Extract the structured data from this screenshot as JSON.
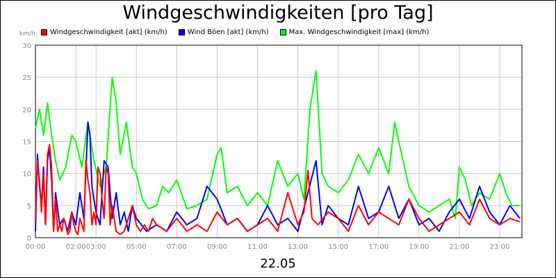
{
  "chart_data": {
    "type": "line",
    "title": "Windgeschwindigkeiten [pro Tag]",
    "ylabel": "km/h",
    "xlabel": "22.05",
    "ylim": [
      0,
      30
    ],
    "xlim": [
      0,
      24.1
    ],
    "yticks": [
      0,
      5,
      10,
      15,
      20,
      25,
      30
    ],
    "xticks": [
      {
        "h": 0,
        "label": "00:00"
      },
      {
        "h": 2,
        "label": "02:00"
      },
      {
        "h": 3,
        "label": "03:00"
      },
      {
        "h": 5,
        "label": "05:00"
      },
      {
        "h": 7,
        "label": "07:00"
      },
      {
        "h": 9,
        "label": "09:00"
      },
      {
        "h": 11,
        "label": "11:00"
      },
      {
        "h": 13,
        "label": "13:00"
      },
      {
        "h": 15,
        "label": "15:00"
      },
      {
        "h": 17,
        "label": "17:00"
      },
      {
        "h": 19,
        "label": "19:00"
      },
      {
        "h": 21,
        "label": "21:00"
      },
      {
        "h": 23,
        "label": "23:00"
      }
    ],
    "grid": true,
    "legend_position": "top",
    "series": [
      {
        "name": "Windgeschwindigkeit [akt] (km/h)",
        "color": "#ff0000",
        "x": [
          0,
          0.1,
          0.2,
          0.3,
          0.4,
          0.5,
          0.6,
          0.7,
          0.8,
          0.9,
          1.0,
          1.1,
          1.2,
          1.3,
          1.4,
          1.5,
          1.6,
          1.7,
          1.8,
          1.9,
          2.0,
          2.1,
          2.2,
          2.3,
          2.4,
          2.5,
          2.6,
          2.7,
          2.8,
          2.9,
          3.0,
          3.1,
          3.2,
          3.3,
          3.4,
          3.5,
          3.6,
          3.7,
          3.8,
          3.9,
          4.0,
          4.2,
          4.4,
          4.6,
          4.8,
          5.0,
          5.2,
          5.4,
          5.6,
          5.8,
          6.0,
          6.5,
          7.0,
          7.5,
          8.0,
          8.5,
          9.0,
          9.5,
          10.0,
          10.5,
          11.0,
          11.5,
          12.0,
          12.5,
          13.0,
          13.3,
          13.5,
          13.7,
          14.0,
          14.5,
          15.0,
          15.5,
          16.0,
          16.5,
          17.0,
          17.5,
          18.0,
          18.5,
          19.0,
          19.5,
          20.0,
          20.5,
          21.0,
          21.5,
          22.0,
          22.5,
          23.0,
          23.5,
          24.0
        ],
        "y": [
          3,
          12,
          9,
          4,
          10,
          2,
          13,
          14.5,
          11,
          1,
          6,
          1,
          2,
          1,
          3,
          2,
          0.5,
          1,
          4,
          2,
          1,
          0.5,
          3,
          2,
          1,
          12,
          9,
          7,
          2,
          4,
          2,
          11,
          10,
          6,
          3,
          11,
          10,
          2,
          5,
          3,
          1,
          0.5,
          1,
          3,
          5,
          2,
          1,
          2,
          1,
          3,
          2,
          1,
          3,
          1,
          2,
          1,
          4,
          2,
          3,
          1,
          2,
          3,
          1,
          7,
          2,
          4,
          10.5,
          3,
          2,
          4,
          3,
          1,
          5,
          2,
          4,
          3,
          2,
          6,
          3,
          1,
          2,
          3,
          4,
          2,
          6,
          3,
          2,
          3,
          2.5
        ]
      },
      {
        "name": "Wind Böen [akt] (km/h)",
        "color": "#0000ff",
        "x": [
          0,
          0.1,
          0.2,
          0.3,
          0.4,
          0.5,
          0.6,
          0.7,
          0.8,
          0.9,
          1.0,
          1.2,
          1.4,
          1.6,
          1.8,
          2.0,
          2.2,
          2.4,
          2.6,
          2.7,
          2.8,
          3.0,
          3.2,
          3.4,
          3.6,
          3.8,
          4.0,
          4.2,
          4.4,
          4.6,
          4.8,
          5.0,
          5.5,
          6.0,
          6.5,
          7.0,
          7.5,
          8.0,
          8.5,
          9.0,
          9.5,
          10.0,
          10.5,
          11.0,
          11.5,
          12.0,
          12.5,
          13.0,
          13.5,
          13.9,
          14.2,
          14.5,
          15.0,
          15.5,
          16.0,
          16.5,
          17.0,
          17.5,
          18.0,
          18.5,
          19.0,
          19.5,
          20.0,
          20.5,
          21.0,
          21.5,
          22.0,
          22.5,
          23.0,
          23.5,
          24.0
        ],
        "y": [
          1,
          13,
          8,
          5,
          11,
          2,
          12,
          14,
          9,
          1,
          7,
          2,
          3,
          1,
          4,
          2,
          7,
          3,
          18,
          16,
          8,
          4,
          2,
          12,
          11,
          3,
          7,
          2,
          4,
          1,
          5,
          3,
          1,
          2,
          1,
          4,
          2,
          3,
          8,
          6,
          2,
          3,
          1,
          2,
          5,
          2,
          3,
          1,
          7,
          12,
          2,
          5,
          3,
          2,
          8,
          3,
          4,
          8,
          3,
          6,
          2,
          3,
          1,
          4,
          6,
          3,
          8,
          4,
          2,
          5,
          3
        ]
      },
      {
        "name": "Max. Windgeschwindigkeit [max] (km/h)",
        "color": "#00ff00",
        "x": [
          0,
          0.2,
          0.4,
          0.6,
          0.8,
          1.0,
          1.2,
          1.5,
          1.8,
          2.0,
          2.3,
          2.6,
          2.9,
          3.2,
          3.5,
          3.8,
          4.0,
          4.2,
          4.5,
          4.8,
          5.0,
          5.3,
          5.6,
          6.0,
          6.3,
          6.6,
          7.0,
          7.5,
          8.0,
          8.5,
          9.0,
          9.2,
          9.5,
          10.0,
          10.5,
          11.0,
          11.5,
          12.0,
          12.5,
          13.0,
          13.3,
          13.6,
          13.9,
          14.2,
          14.5,
          15.0,
          15.5,
          16.0,
          16.5,
          17.0,
          17.5,
          17.8,
          18.0,
          18.5,
          19.0,
          19.5,
          20.0,
          20.5,
          20.8,
          21.0,
          21.3,
          21.6,
          22.0,
          22.5,
          23.0,
          23.3,
          23.6,
          24.0
        ],
        "y": [
          17,
          20,
          16,
          21,
          16,
          12,
          9,
          11,
          16,
          15,
          11,
          18,
          12,
          8,
          11,
          25,
          21,
          13,
          18,
          11,
          10,
          6,
          4.5,
          5,
          8,
          7,
          9,
          4.5,
          5,
          6,
          13,
          14,
          7,
          8,
          5,
          7,
          5,
          12,
          8,
          10,
          6,
          20,
          26,
          10,
          8,
          7,
          9,
          13,
          10,
          14,
          10,
          18,
          15,
          8,
          5,
          4,
          5,
          6,
          3,
          11,
          9,
          5,
          7,
          6,
          10,
          7,
          5,
          5
        ]
      }
    ]
  }
}
